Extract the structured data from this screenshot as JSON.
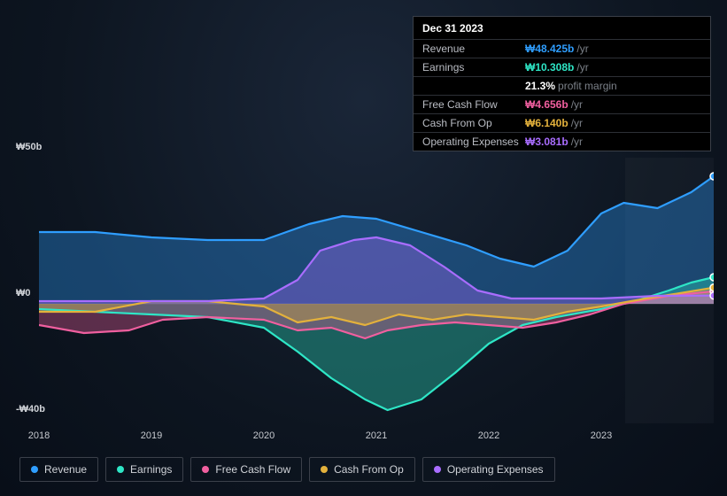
{
  "tooltip": {
    "date": "Dec 31 2023",
    "rows": [
      {
        "label": "Revenue",
        "value": "₩48.425b",
        "suffix": "/yr",
        "cls": "blue"
      },
      {
        "label": "Earnings",
        "value": "₩10.308b",
        "suffix": "/yr",
        "cls": "teal"
      },
      {
        "label": "",
        "value": "21.3%",
        "suffix": "profit margin",
        "cls": "white"
      },
      {
        "label": "Free Cash Flow",
        "value": "₩4.656b",
        "suffix": "/yr",
        "cls": "pink"
      },
      {
        "label": "Cash From Op",
        "value": "₩6.140b",
        "suffix": "/yr",
        "cls": "gold"
      },
      {
        "label": "Operating Expenses",
        "value": "₩3.081b",
        "suffix": "/yr",
        "cls": "purple"
      }
    ]
  },
  "chart": {
    "type": "area",
    "background": "#0d1520",
    "xlim": [
      2018,
      2024
    ],
    "x_ticks": [
      2018,
      2019,
      2020,
      2021,
      2022,
      2023
    ],
    "ylim": [
      -45,
      55
    ],
    "y_ticks": [
      {
        "v": 50,
        "label": "₩50b"
      },
      {
        "v": 0,
        "label": "₩0"
      },
      {
        "v": -40,
        "label": "-₩40b"
      }
    ],
    "hover_x": 2024.0,
    "series": [
      {
        "name": "Revenue",
        "color": "#2f9eff",
        "points": [
          [
            2018.0,
            27
          ],
          [
            2018.5,
            27
          ],
          [
            2019.0,
            25
          ],
          [
            2019.5,
            24
          ],
          [
            2020.0,
            24
          ],
          [
            2020.4,
            30
          ],
          [
            2020.7,
            33
          ],
          [
            2021.0,
            32
          ],
          [
            2021.4,
            27
          ],
          [
            2021.8,
            22
          ],
          [
            2022.1,
            17
          ],
          [
            2022.4,
            14
          ],
          [
            2022.7,
            20
          ],
          [
            2023.0,
            34
          ],
          [
            2023.2,
            38
          ],
          [
            2023.5,
            36
          ],
          [
            2023.8,
            42
          ],
          [
            2024.0,
            48
          ]
        ]
      },
      {
        "name": "Earnings",
        "color": "#2ee6c6",
        "points": [
          [
            2018.0,
            -2
          ],
          [
            2018.5,
            -3
          ],
          [
            2019.0,
            -4
          ],
          [
            2019.5,
            -5
          ],
          [
            2020.0,
            -9
          ],
          [
            2020.3,
            -18
          ],
          [
            2020.6,
            -28
          ],
          [
            2020.9,
            -36
          ],
          [
            2021.1,
            -40
          ],
          [
            2021.4,
            -36
          ],
          [
            2021.7,
            -26
          ],
          [
            2022.0,
            -15
          ],
          [
            2022.3,
            -8
          ],
          [
            2022.6,
            -5
          ],
          [
            2023.0,
            -2
          ],
          [
            2023.3,
            1
          ],
          [
            2023.6,
            5
          ],
          [
            2023.8,
            8
          ],
          [
            2024.0,
            10
          ]
        ]
      },
      {
        "name": "Free Cash Flow",
        "color": "#f05f9f",
        "points": [
          [
            2018.0,
            -8
          ],
          [
            2018.4,
            -11
          ],
          [
            2018.8,
            -10
          ],
          [
            2019.1,
            -6
          ],
          [
            2019.5,
            -5
          ],
          [
            2020.0,
            -6
          ],
          [
            2020.3,
            -10
          ],
          [
            2020.6,
            -9
          ],
          [
            2020.9,
            -13
          ],
          [
            2021.1,
            -10
          ],
          [
            2021.4,
            -8
          ],
          [
            2021.7,
            -7
          ],
          [
            2022.0,
            -8
          ],
          [
            2022.3,
            -9
          ],
          [
            2022.6,
            -7
          ],
          [
            2022.9,
            -4
          ],
          [
            2023.2,
            0
          ],
          [
            2023.6,
            3
          ],
          [
            2024.0,
            4.7
          ]
        ]
      },
      {
        "name": "Cash From Op",
        "color": "#e3b13c",
        "points": [
          [
            2018.0,
            -3
          ],
          [
            2018.5,
            -3
          ],
          [
            2019.0,
            1
          ],
          [
            2019.5,
            1
          ],
          [
            2020.0,
            -1
          ],
          [
            2020.3,
            -7
          ],
          [
            2020.6,
            -5
          ],
          [
            2020.9,
            -8
          ],
          [
            2021.2,
            -4
          ],
          [
            2021.5,
            -6
          ],
          [
            2021.8,
            -4
          ],
          [
            2022.1,
            -5
          ],
          [
            2022.4,
            -6
          ],
          [
            2022.7,
            -3
          ],
          [
            2023.0,
            -1
          ],
          [
            2023.4,
            2
          ],
          [
            2023.7,
            4
          ],
          [
            2024.0,
            6.1
          ]
        ]
      },
      {
        "name": "Operating Expenses",
        "color": "#a96dff",
        "points": [
          [
            2018.0,
            1
          ],
          [
            2018.5,
            1
          ],
          [
            2019.0,
            1
          ],
          [
            2019.5,
            1
          ],
          [
            2020.0,
            2
          ],
          [
            2020.3,
            9
          ],
          [
            2020.5,
            20
          ],
          [
            2020.8,
            24
          ],
          [
            2021.0,
            25
          ],
          [
            2021.3,
            22
          ],
          [
            2021.6,
            14
          ],
          [
            2021.9,
            5
          ],
          [
            2022.2,
            2
          ],
          [
            2022.6,
            2
          ],
          [
            2023.0,
            2
          ],
          [
            2023.5,
            3
          ],
          [
            2024.0,
            3.1
          ]
        ]
      }
    ]
  },
  "legend": [
    {
      "label": "Revenue",
      "color": "#2f9eff"
    },
    {
      "label": "Earnings",
      "color": "#2ee6c6"
    },
    {
      "label": "Free Cash Flow",
      "color": "#f05f9f"
    },
    {
      "label": "Cash From Op",
      "color": "#e3b13c"
    },
    {
      "label": "Operating Expenses",
      "color": "#a96dff"
    }
  ]
}
